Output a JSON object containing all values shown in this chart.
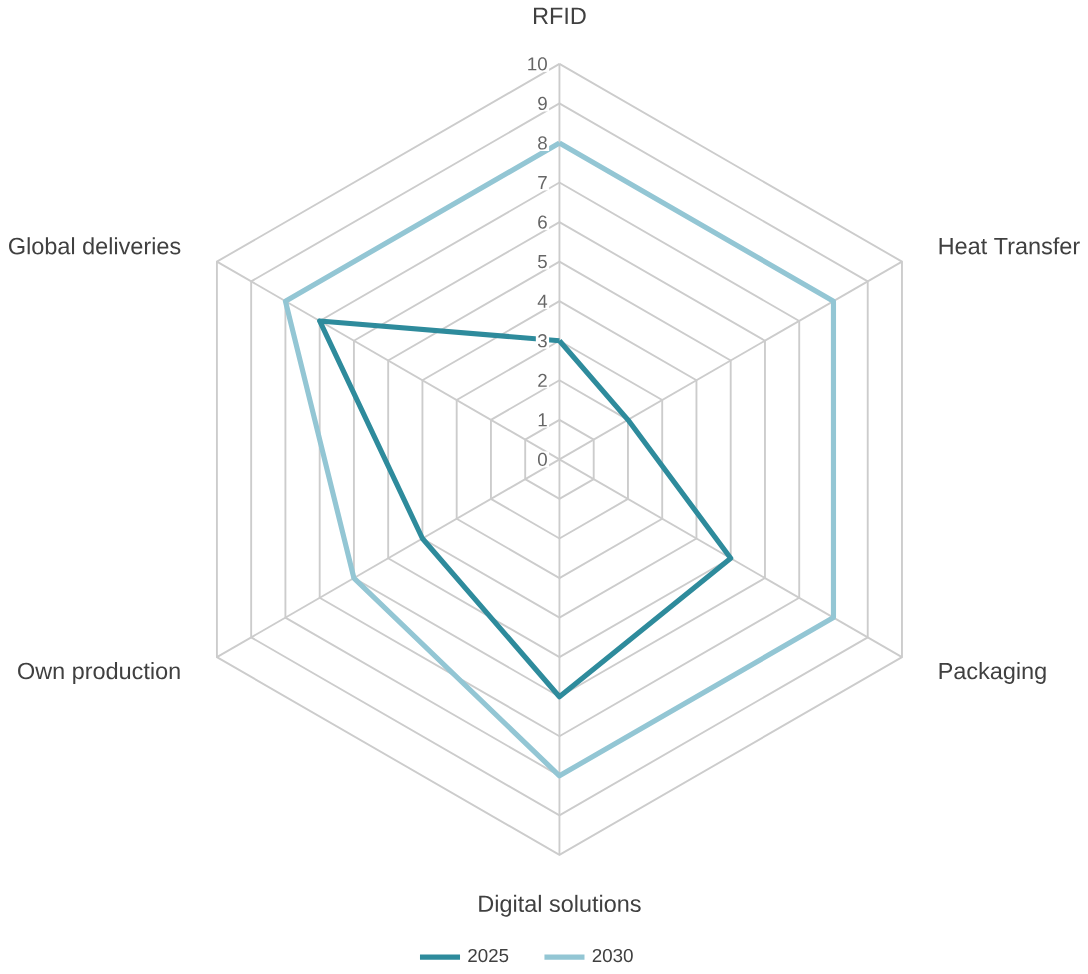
{
  "chart_data": {
    "type": "radar",
    "categories": [
      "RFID",
      "Heat Transfer",
      "Packaging",
      "Digital solutions",
      "Own production",
      "Global deliveries"
    ],
    "series": [
      {
        "name": "2025",
        "color": "#2e8b9c",
        "values": [
          3,
          2,
          5,
          6,
          4,
          7
        ]
      },
      {
        "name": "2030",
        "color": "#93c6d4",
        "values": [
          8,
          8,
          8,
          8,
          6,
          8
        ]
      }
    ],
    "ylim": [
      0,
      10
    ],
    "yticks": [
      0,
      1,
      2,
      3,
      4,
      5,
      6,
      7,
      8,
      9,
      10
    ],
    "grid": true,
    "legend": "bottom"
  }
}
